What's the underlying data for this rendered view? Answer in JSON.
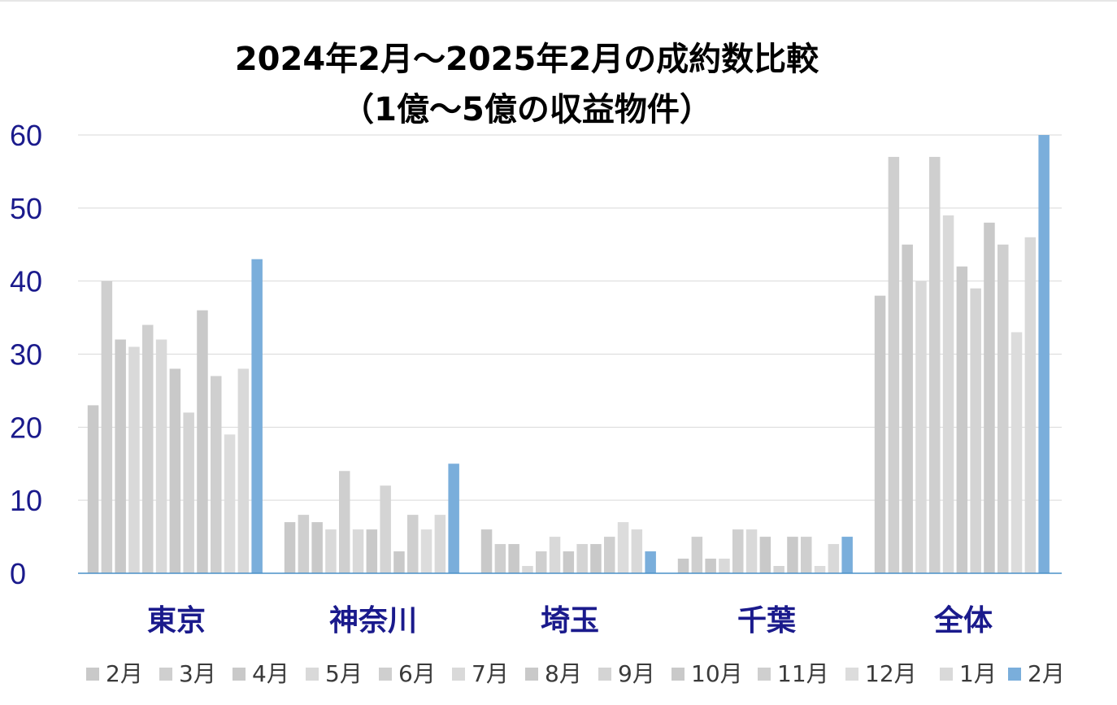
{
  "chart_data": {
    "type": "bar",
    "title": [
      "2024年2月～2025年2月の成約数比較",
      "（1億～5億の収益物件）"
    ],
    "xlabel": "",
    "ylabel": "",
    "ylim": [
      0,
      60
    ],
    "yticks": [
      "0",
      "10",
      "20",
      "30",
      "40",
      "50",
      "60"
    ],
    "grid": true,
    "legend_position": "bottom",
    "categories": [
      "東京",
      "神奈川",
      "埼玉",
      "千葉",
      "全体"
    ],
    "series": [
      {
        "name": "2月",
        "color": "#c9c9c9",
        "values": [
          23,
          7,
          6,
          2,
          38
        ]
      },
      {
        "name": "3月",
        "color": "#cfcfcf",
        "values": [
          40,
          8,
          4,
          5,
          57
        ]
      },
      {
        "name": "4月",
        "color": "#c9c9c9",
        "values": [
          32,
          7,
          4,
          2,
          45
        ]
      },
      {
        "name": "5月",
        "color": "#d9d9d9",
        "values": [
          31,
          6,
          1,
          2,
          40
        ]
      },
      {
        "name": "6月",
        "color": "#cfcfcf",
        "values": [
          34,
          14,
          3,
          6,
          57
        ]
      },
      {
        "name": "7月",
        "color": "#d9d9d9",
        "values": [
          32,
          6,
          5,
          6,
          49
        ]
      },
      {
        "name": "8月",
        "color": "#c9c9c9",
        "values": [
          28,
          6,
          3,
          5,
          42
        ]
      },
      {
        "name": "9月",
        "color": "#d4d4d4",
        "values": [
          22,
          12,
          4,
          1,
          39
        ]
      },
      {
        "name": "10月",
        "color": "#c9c9c9",
        "values": [
          36,
          3,
          4,
          5,
          48
        ]
      },
      {
        "name": "11月",
        "color": "#cfcfcf",
        "values": [
          27,
          8,
          5,
          5,
          45
        ]
      },
      {
        "name": "12月",
        "color": "#dcdcdc",
        "values": [
          19,
          6,
          7,
          1,
          33
        ]
      },
      {
        "name": "1月",
        "color": "#d9d9d9",
        "values": [
          28,
          8,
          6,
          4,
          46
        ]
      },
      {
        "name": "2月",
        "color": "#7aaedb",
        "values": [
          43,
          15,
          3,
          5,
          60
        ]
      }
    ]
  }
}
